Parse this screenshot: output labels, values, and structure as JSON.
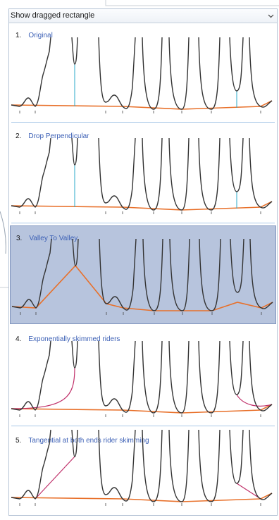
{
  "dropdown": {
    "value": "Show dragged rectangle",
    "icon": "chevron-down-icon"
  },
  "items": [
    {
      "number": "1.",
      "label": "Original",
      "selected": false,
      "baseline_method": "original"
    },
    {
      "number": "2.",
      "label": "Drop Perpendicular",
      "selected": false,
      "baseline_method": "drop-perpendicular"
    },
    {
      "number": "3.",
      "label": "Valley To Valley",
      "selected": true,
      "baseline_method": "valley-to-valley"
    },
    {
      "number": "4.",
      "label": "Exponentially skimmed riders",
      "selected": false,
      "baseline_method": "exponential-skim"
    },
    {
      "number": "5.",
      "label": "Tangential at both ends rider skimming",
      "selected": false,
      "baseline_method": "tangential-skim"
    }
  ],
  "colors": {
    "trace": "#333333",
    "baseline": "#e8702a",
    "perpendicular": "#2aa8c8",
    "skim": "#c0306a",
    "selected_background": "#b7c4dd",
    "item_label": "#3b5fb5"
  }
}
